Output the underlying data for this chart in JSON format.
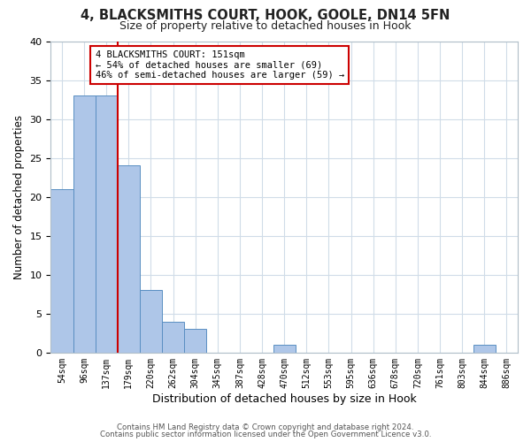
{
  "title": "4, BLACKSMITHS COURT, HOOK, GOOLE, DN14 5FN",
  "subtitle": "Size of property relative to detached houses in Hook",
  "xlabel": "Distribution of detached houses by size in Hook",
  "ylabel": "Number of detached properties",
  "bin_labels": [
    "54sqm",
    "96sqm",
    "137sqm",
    "179sqm",
    "220sqm",
    "262sqm",
    "304sqm",
    "345sqm",
    "387sqm",
    "428sqm",
    "470sqm",
    "512sqm",
    "553sqm",
    "595sqm",
    "636sqm",
    "678sqm",
    "720sqm",
    "761sqm",
    "803sqm",
    "844sqm",
    "886sqm"
  ],
  "bar_values": [
    21,
    33,
    33,
    24,
    8,
    4,
    3,
    0,
    0,
    0,
    1,
    0,
    0,
    0,
    0,
    0,
    0,
    0,
    0,
    1,
    0
  ],
  "bar_color": "#aec6e8",
  "bar_edge_color": "#5a8fc2",
  "vline_x_index": 2,
  "vline_color": "#cc0000",
  "annotation_line1": "4 BLACKSMITHS COURT: 151sqm",
  "annotation_line2": "← 54% of detached houses are smaller (69)",
  "annotation_line3": "46% of semi-detached houses are larger (59) →",
  "annotation_box_color": "#cc0000",
  "ylim": [
    0,
    40
  ],
  "yticks": [
    0,
    5,
    10,
    15,
    20,
    25,
    30,
    35,
    40
  ],
  "footer1": "Contains HM Land Registry data © Crown copyright and database right 2024.",
  "footer2": "Contains public sector information licensed under the Open Government Licence v3.0.",
  "bg_color": "#ffffff",
  "plot_bg_color": "#ffffff",
  "grid_color": "#d0dce8"
}
